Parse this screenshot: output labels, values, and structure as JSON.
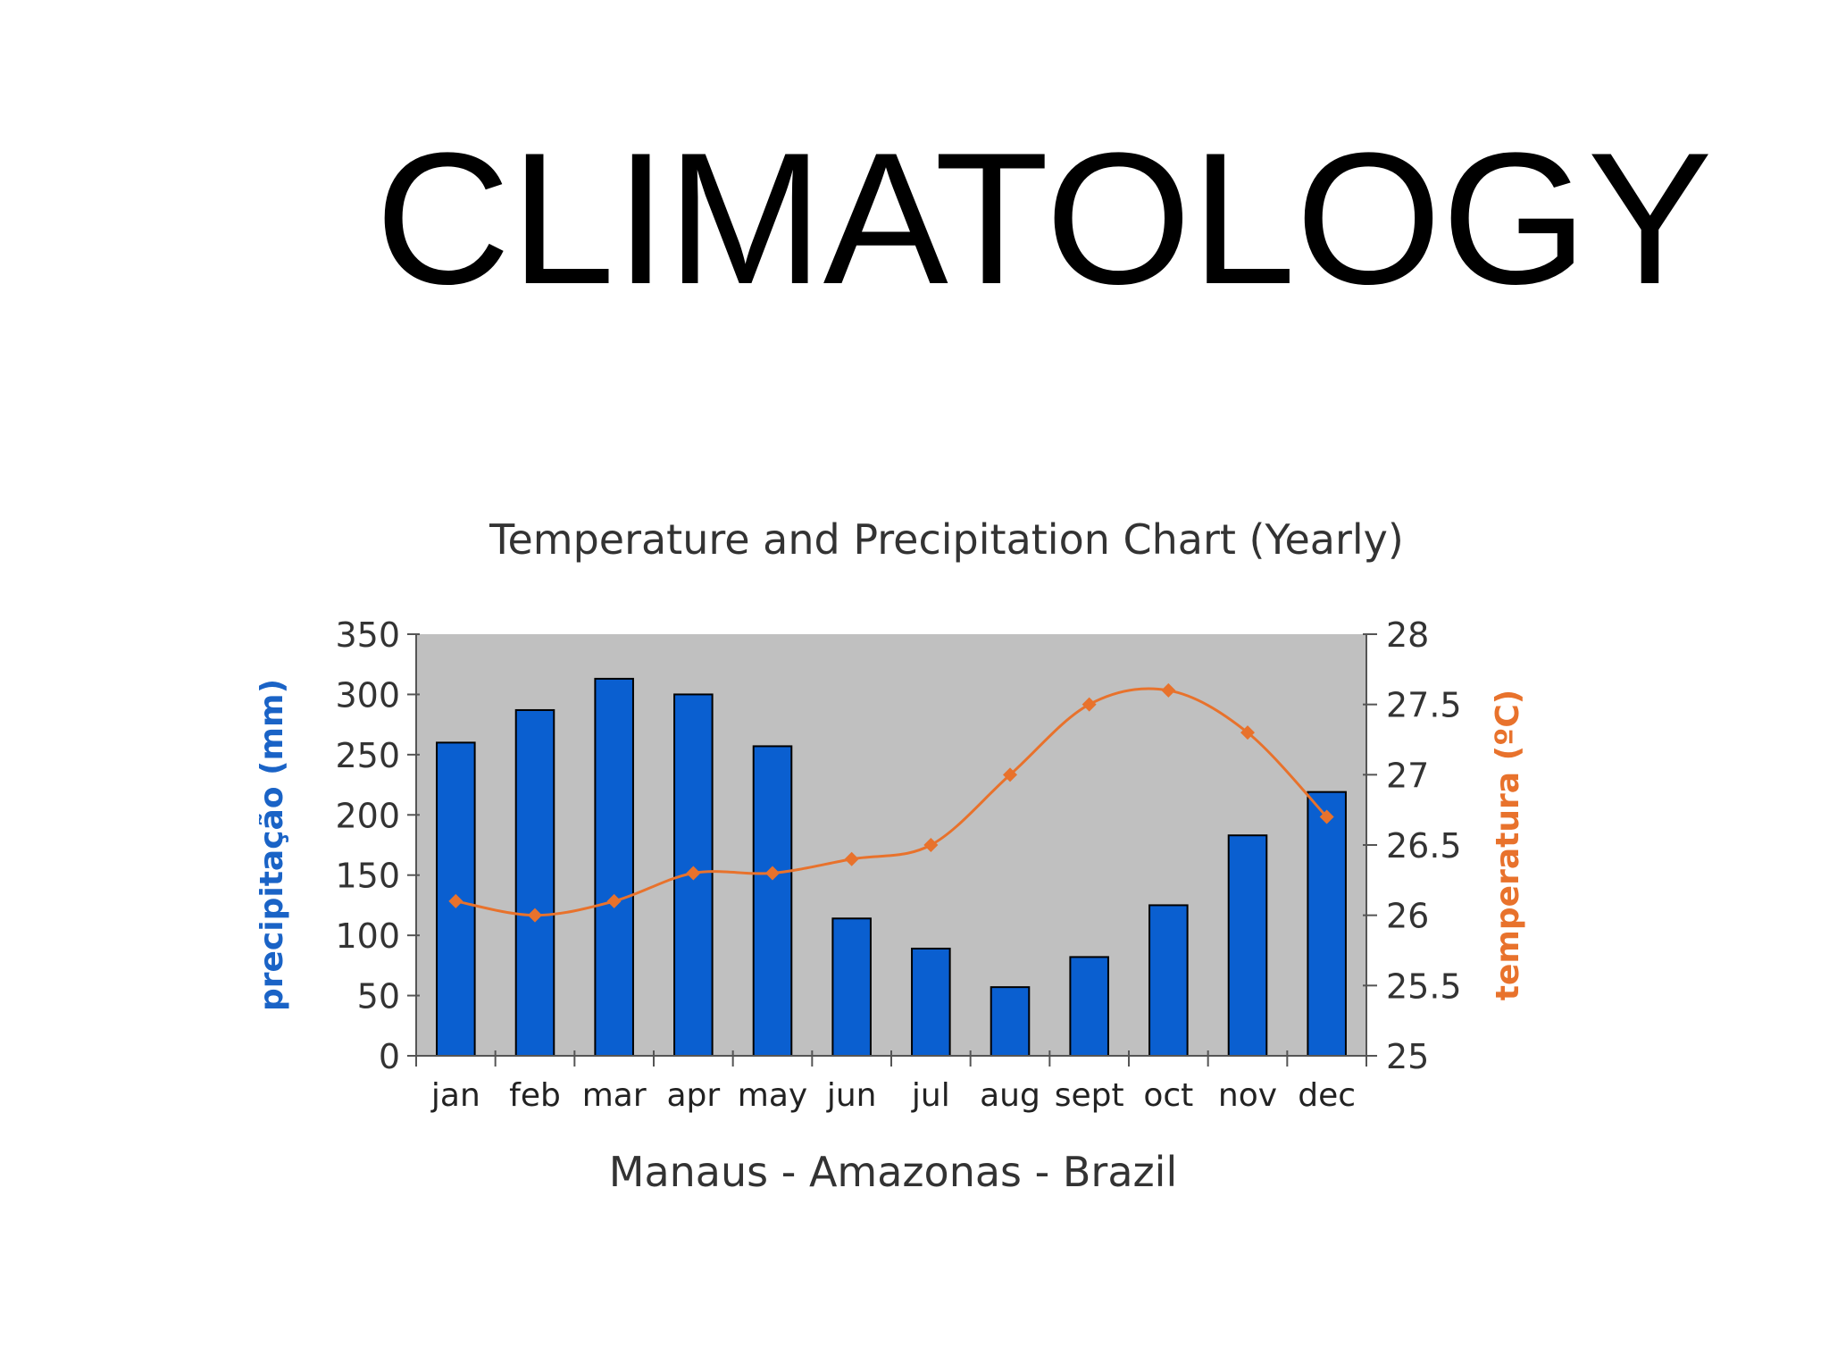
{
  "slide": {
    "title": "CLIMATOLOGY"
  },
  "chart_data": {
    "type": "bar",
    "title": "Temperature and Precipitation Chart (Yearly)",
    "subtitle": "Manaus - Amazonas - Brazil",
    "categories": [
      "jan",
      "feb",
      "mar",
      "apr",
      "may",
      "jun",
      "jul",
      "aug",
      "sept",
      "oct",
      "nov",
      "dec"
    ],
    "series": [
      {
        "name": "precipitação (mm)",
        "type": "bar",
        "axis": "left",
        "values": [
          260,
          287,
          313,
          300,
          257,
          114,
          89,
          57,
          82,
          125,
          183,
          219
        ]
      },
      {
        "name": "temperatura (ºC)",
        "type": "line",
        "axis": "right",
        "values": [
          26.1,
          26.0,
          26.1,
          26.3,
          26.3,
          26.4,
          26.5,
          27.0,
          27.5,
          27.6,
          27.3,
          26.7
        ]
      }
    ],
    "y_left": {
      "label": "precipitação (mm)",
      "min": 0,
      "max": 350,
      "ticks": [
        "0",
        "50",
        "100",
        "150",
        "200",
        "250",
        "300",
        "350"
      ]
    },
    "y_right": {
      "label": "temperatura (ºC)",
      "min": 25,
      "max": 28,
      "ticks": [
        "25",
        "25.5",
        "26",
        "26.5",
        "27",
        "27.5",
        "28"
      ]
    },
    "grid": false,
    "legend": "none",
    "colors": {
      "plot_bg": "#c0c0c0",
      "bar": "#0a5fd0",
      "bar_edge": "#000000",
      "line": "#e8722c",
      "left_label": "#1a63c6",
      "right_label": "#e8722c",
      "tick_text": "#333333"
    }
  }
}
